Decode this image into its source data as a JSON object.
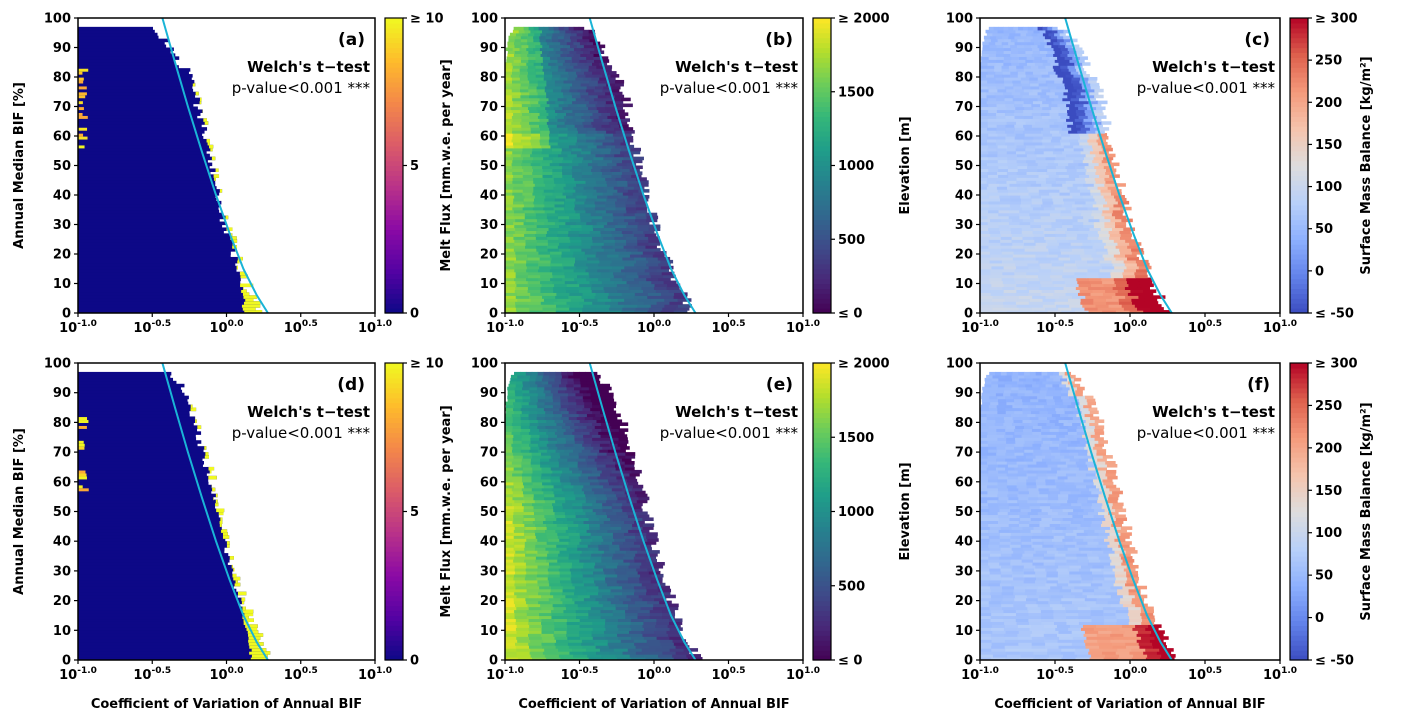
{
  "colors": {
    "curve": "#1ab4d6",
    "panel_border": "#000000"
  },
  "chart_data": [
    {
      "type": "heatmap",
      "panel": "a",
      "tag": "(a)",
      "test_label": "Welch's t−test",
      "p_label": "p-value<0.001 ***",
      "xlabel": "",
      "ylabel": "Annual Median BIF [%]",
      "x_scale": "log",
      "xlim": [
        0.1,
        10
      ],
      "ylim": [
        0,
        100
      ],
      "x_ticks": [
        {
          "base": "10",
          "exp": "-1.0"
        },
        {
          "base": "10",
          "exp": "-0.5"
        },
        {
          "base": "10",
          "exp": "0.0"
        },
        {
          "base": "10",
          "exp": "0.5"
        },
        {
          "base": "10",
          "exp": "1.0"
        }
      ],
      "y_ticks": [
        "0",
        "10",
        "20",
        "30",
        "40",
        "50",
        "60",
        "70",
        "80",
        "90",
        "100"
      ],
      "colormap": "plasma",
      "colorbar_label": "",
      "colorbar_ticks": [
        "0",
        "5",
        "≥ 10"
      ],
      "colorbar_range": [
        0,
        10
      ],
      "envelope_left": [
        [
          0,
          0.097
        ],
        [
          10,
          0.097
        ],
        [
          20,
          0.097
        ],
        [
          30,
          0.097
        ],
        [
          40,
          0.097
        ],
        [
          50,
          0.097
        ],
        [
          60,
          0.097
        ],
        [
          70,
          0.097
        ],
        [
          80,
          0.097
        ],
        [
          90,
          0.097
        ],
        [
          96,
          0.1
        ]
      ],
      "envelope_right": [
        [
          0,
          1.75
        ],
        [
          5,
          1.55
        ],
        [
          10,
          1.35
        ],
        [
          20,
          1.15
        ],
        [
          30,
          1.0
        ],
        [
          40,
          0.88
        ],
        [
          50,
          0.8
        ],
        [
          60,
          0.72
        ],
        [
          70,
          0.65
        ],
        [
          80,
          0.56
        ],
        [
          85,
          0.47
        ],
        [
          90,
          0.42
        ],
        [
          93,
          0.36
        ],
        [
          96,
          0.32
        ]
      ],
      "high_band": [
        [
          5,
          1.3
        ],
        [
          15,
          1.2
        ],
        [
          30,
          1.0
        ],
        [
          45,
          0.84
        ],
        [
          60,
          0.74
        ],
        [
          75,
          0.62
        ],
        [
          85,
          0.55
        ]
      ],
      "fit_curve_x": [
        0.37,
        0.45,
        0.55,
        0.68,
        0.85,
        1.05,
        1.3,
        1.6,
        1.9
      ],
      "fit_curve_y": [
        100,
        85,
        70,
        55,
        40,
        27,
        15,
        6,
        0
      ]
    },
    {
      "type": "heatmap",
      "panel": "b",
      "tag": "(b)",
      "test_label": "Welch's t−test",
      "p_label": "p-value<0.001 ***",
      "xlabel": "",
      "ylabel": "Melt Flux [mm.w.e. per year]",
      "x_scale": "log",
      "xlim": [
        0.1,
        10
      ],
      "ylim": [
        0,
        100
      ],
      "x_ticks": [
        {
          "base": "10",
          "exp": "-1.0"
        },
        {
          "base": "10",
          "exp": "-0.5"
        },
        {
          "base": "10",
          "exp": "0.0"
        },
        {
          "base": "10",
          "exp": "0.5"
        },
        {
          "base": "10",
          "exp": "1.0"
        }
      ],
      "y_ticks": [
        "0",
        "10",
        "20",
        "30",
        "40",
        "50",
        "60",
        "70",
        "80",
        "90",
        "100"
      ],
      "colormap": "viridis",
      "colorbar_label": "Elevation [m]",
      "colorbar_ticks": [
        "≤ 0",
        "500",
        "1000",
        "1500",
        "≥ 2000"
      ],
      "colorbar_range": [
        0,
        2000
      ],
      "fit_curve_x": [
        0.37,
        0.45,
        0.55,
        0.68,
        0.85,
        1.05,
        1.3,
        1.6,
        1.9
      ],
      "fit_curve_y": [
        100,
        85,
        70,
        55,
        40,
        27,
        15,
        6,
        0
      ]
    },
    {
      "type": "heatmap",
      "panel": "c",
      "tag": "(c)",
      "test_label": "Welch's t−test",
      "p_label": "p-value<0.001 ***",
      "xlabel": "",
      "ylabel": "",
      "x_scale": "log",
      "xlim": [
        0.1,
        10
      ],
      "ylim": [
        0,
        100
      ],
      "x_ticks": [
        {
          "base": "10",
          "exp": "-1.0"
        },
        {
          "base": "10",
          "exp": "-0.5"
        },
        {
          "base": "10",
          "exp": "0.0"
        },
        {
          "base": "10",
          "exp": "0.5"
        },
        {
          "base": "10",
          "exp": "1.0"
        }
      ],
      "y_ticks": [
        "0",
        "10",
        "20",
        "30",
        "40",
        "50",
        "60",
        "70",
        "80",
        "90",
        "100"
      ],
      "colormap": "coolwarm",
      "colorbar_label": "Surface Mass Balance [kg/m²]",
      "colorbar_ticks": [
        "≤ -50",
        "0",
        "50",
        "100",
        "150",
        "200",
        "250",
        "≥ 300"
      ],
      "colorbar_range": [
        -50,
        300
      ],
      "fit_curve_x": [
        0.37,
        0.45,
        0.55,
        0.68,
        0.85,
        1.05,
        1.3,
        1.6,
        1.9
      ],
      "fit_curve_y": [
        100,
        85,
        70,
        55,
        40,
        27,
        15,
        6,
        0
      ]
    },
    {
      "type": "heatmap",
      "panel": "d",
      "tag": "(d)",
      "test_label": "Welch's t−test",
      "p_label": "p-value<0.001 ***",
      "xlabel": "Coefficient of Variation of Annual BIF",
      "ylabel": "Annual Median BIF [%]",
      "x_scale": "log",
      "xlim": [
        0.1,
        10
      ],
      "ylim": [
        0,
        100
      ],
      "x_ticks": [
        {
          "base": "10",
          "exp": "-1.0"
        },
        {
          "base": "10",
          "exp": "-0.5"
        },
        {
          "base": "10",
          "exp": "0.0"
        },
        {
          "base": "10",
          "exp": "0.5"
        },
        {
          "base": "10",
          "exp": "1.0"
        }
      ],
      "y_ticks": [
        "0",
        "10",
        "20",
        "30",
        "40",
        "50",
        "60",
        "70",
        "80",
        "90",
        "100"
      ],
      "colormap": "plasma",
      "colorbar_label": "",
      "colorbar_ticks": [
        "0",
        "5",
        "≥ 10"
      ],
      "colorbar_range": [
        0,
        10
      ],
      "envelope_left": [
        [
          0,
          0.097
        ],
        [
          10,
          0.097
        ],
        [
          20,
          0.097
        ],
        [
          30,
          0.097
        ],
        [
          40,
          0.097
        ],
        [
          50,
          0.097
        ],
        [
          60,
          0.097
        ],
        [
          70,
          0.097
        ],
        [
          80,
          0.097
        ],
        [
          90,
          0.097
        ],
        [
          97,
          0.1
        ]
      ],
      "envelope_right": [
        [
          0,
          1.95
        ],
        [
          5,
          1.75
        ],
        [
          10,
          1.55
        ],
        [
          20,
          1.3
        ],
        [
          30,
          1.12
        ],
        [
          40,
          1.0
        ],
        [
          50,
          0.9
        ],
        [
          60,
          0.8
        ],
        [
          70,
          0.7
        ],
        [
          80,
          0.62
        ],
        [
          90,
          0.52
        ],
        [
          95,
          0.42
        ]
      ],
      "high_band": [
        [
          5,
          1.45
        ],
        [
          15,
          1.3
        ],
        [
          30,
          1.1
        ],
        [
          45,
          0.92
        ],
        [
          60,
          0.78
        ],
        [
          75,
          0.68
        ],
        [
          85,
          0.58
        ]
      ],
      "fit_curve_x": [
        0.37,
        0.45,
        0.55,
        0.68,
        0.85,
        1.05,
        1.3,
        1.6,
        1.9
      ],
      "fit_curve_y": [
        100,
        85,
        70,
        55,
        40,
        27,
        15,
        6,
        0
      ]
    },
    {
      "type": "heatmap",
      "panel": "e",
      "tag": "(e)",
      "test_label": "Welch's t−test",
      "p_label": "p-value<0.001 ***",
      "xlabel": "Coefficient of Variation of Annual BIF",
      "ylabel": "Melt Flux [mm.w.e. per year]",
      "x_scale": "log",
      "xlim": [
        0.1,
        10
      ],
      "ylim": [
        0,
        100
      ],
      "x_ticks": [
        {
          "base": "10",
          "exp": "-1.0"
        },
        {
          "base": "10",
          "exp": "-0.5"
        },
        {
          "base": "10",
          "exp": "0.0"
        },
        {
          "base": "10",
          "exp": "0.5"
        },
        {
          "base": "10",
          "exp": "1.0"
        }
      ],
      "y_ticks": [
        "0",
        "10",
        "20",
        "30",
        "40",
        "50",
        "60",
        "70",
        "80",
        "90",
        "100"
      ],
      "colormap": "viridis",
      "colorbar_label": "Elevation [m]",
      "colorbar_ticks": [
        "≤ 0",
        "500",
        "1000",
        "1500",
        "≥ 2000"
      ],
      "colorbar_range": [
        0,
        2000
      ],
      "fit_curve_x": [
        0.37,
        0.45,
        0.55,
        0.68,
        0.85,
        1.05,
        1.3,
        1.6,
        1.9
      ],
      "fit_curve_y": [
        100,
        85,
        70,
        55,
        40,
        27,
        15,
        6,
        0
      ]
    },
    {
      "type": "heatmap",
      "panel": "f",
      "tag": "(f)",
      "test_label": "Welch's t−test",
      "p_label": "p-value<0.001 ***",
      "xlabel": "Coefficient of Variation of Annual BIF",
      "ylabel": "",
      "x_scale": "log",
      "xlim": [
        0.1,
        10
      ],
      "ylim": [
        0,
        100
      ],
      "x_ticks": [
        {
          "base": "10",
          "exp": "-1.0"
        },
        {
          "base": "10",
          "exp": "-0.5"
        },
        {
          "base": "10",
          "exp": "0.0"
        },
        {
          "base": "10",
          "exp": "0.5"
        },
        {
          "base": "10",
          "exp": "1.0"
        }
      ],
      "y_ticks": [
        "0",
        "10",
        "20",
        "30",
        "40",
        "50",
        "60",
        "70",
        "80",
        "90",
        "100"
      ],
      "colormap": "coolwarm",
      "colorbar_label": "Surface Mass Balance [kg/m²]",
      "colorbar_ticks": [
        "≤ -50",
        "0",
        "50",
        "100",
        "150",
        "200",
        "250",
        "≥ 300"
      ],
      "colorbar_range": [
        -50,
        300
      ],
      "fit_curve_x": [
        0.37,
        0.45,
        0.55,
        0.68,
        0.85,
        1.05,
        1.3,
        1.6,
        1.9
      ],
      "fit_curve_y": [
        100,
        85,
        70,
        55,
        40,
        27,
        15,
        6,
        0
      ]
    }
  ]
}
